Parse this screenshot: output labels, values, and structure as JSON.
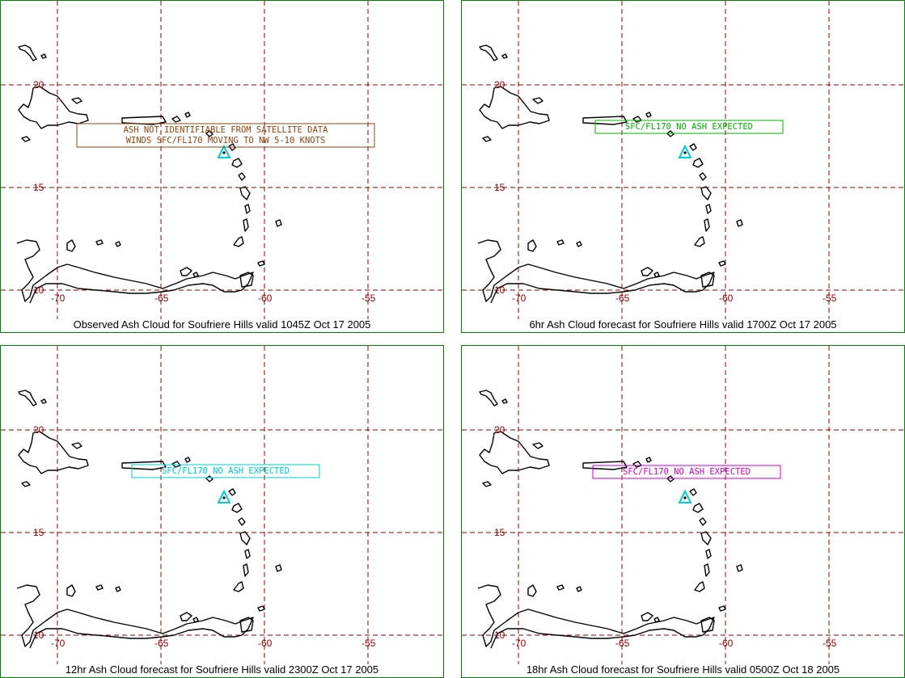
{
  "panels": [
    {
      "caption": "Observed Ash Cloud for Soufriere  Hills valid 1045Z Oct 17 2005",
      "ash_text_lines": [
        "ASH NOT IDENTIFIABLE FROM SATELLITE DATA",
        "WINDS SFC/FL170 MOVING TO NW 5-10 KNOTS"
      ],
      "box_color": "#8b4513"
    },
    {
      "caption": "6hr Ash Cloud forecast for Soufriere  Hills valid 1700Z Oct 17 2005",
      "ash_text_lines": [
        "SFC/FL170  NO ASH EXPECTED"
      ],
      "box_color": "#00b000"
    },
    {
      "caption": "12hr Ash Cloud forecast for Soufriere  Hills valid 2300Z Oct 17 2005",
      "ash_text_lines": [
        "SFC/FL170  NO ASH EXPECTED"
      ],
      "box_color": "#00cccc"
    },
    {
      "caption": "18hr Ash Cloud forecast for Soufriere  Hills valid 0500Z Oct 18 2005",
      "ash_text_lines": [
        "SFC/FL170  NO ASH EXPECTED"
      ],
      "box_color": "#cc00cc"
    }
  ],
  "axes": {
    "lon_labels": [
      "-70",
      "-65",
      "-60",
      "-55"
    ],
    "lat_labels": [
      "20",
      "15",
      "10"
    ]
  },
  "colors": {
    "grid": "#8b0000",
    "panel_border": "#008000",
    "volcano_marker": "#00cccc"
  },
  "volcano_icon": "triangle-icon"
}
